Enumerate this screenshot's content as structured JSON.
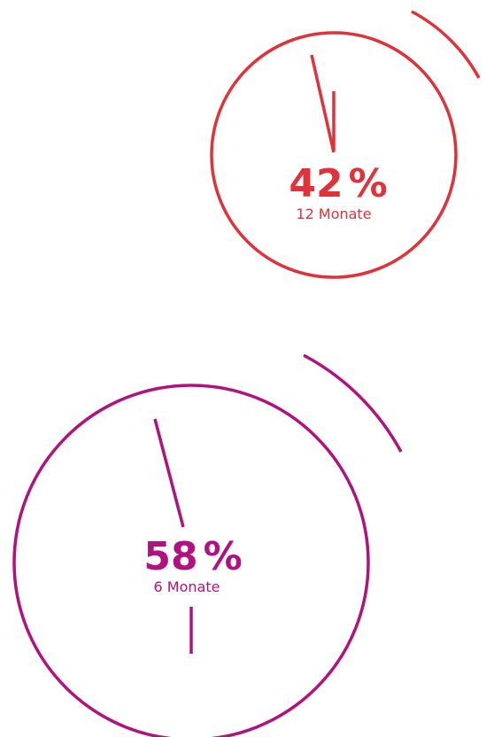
{
  "items": [
    {
      "value": 42,
      "unit": "%",
      "label": "12 Monate",
      "color": "#e0323a"
    },
    {
      "value": 58,
      "unit": "%",
      "label": "6 Monate",
      "color": "#b0127f"
    }
  ]
}
